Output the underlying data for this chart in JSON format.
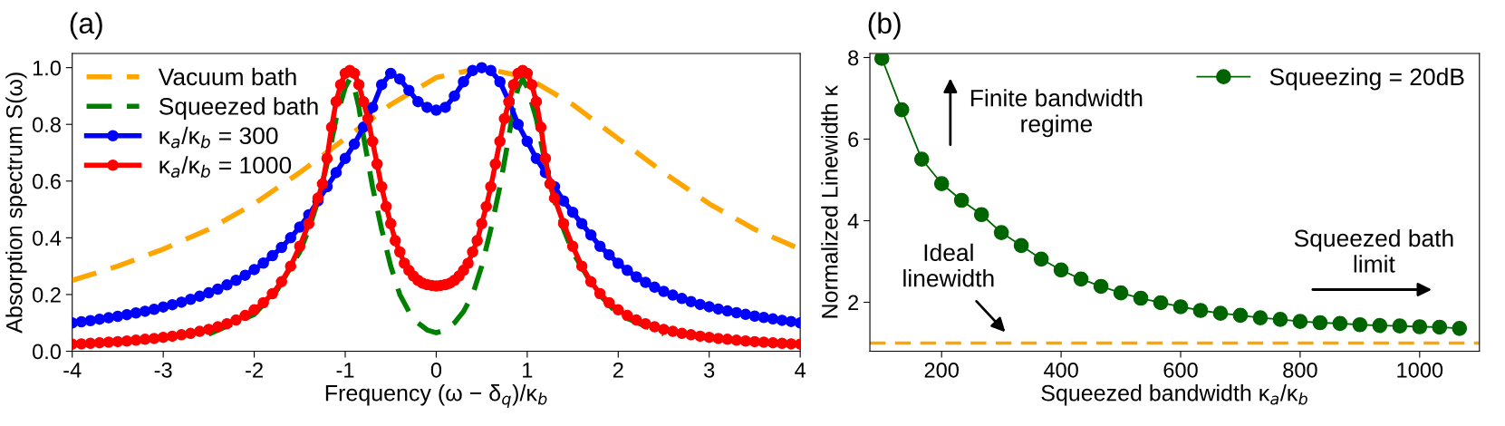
{
  "chart_data": [
    {
      "type": "line",
      "title": "(a)",
      "xlabel": "Frequency (ω − δ$_{q}$)/κ$_{b}$",
      "ylabel": "Absorption spectrum S(ω)",
      "xlim": [
        -4,
        4
      ],
      "xticks": [
        -4,
        -3,
        -2,
        -1,
        0,
        1,
        2,
        3,
        4
      ],
      "ylim": [
        0,
        1.05
      ],
      "yticks": [
        {
          "value": 0,
          "label": "0.0"
        },
        {
          "value": 0.2,
          "label": "0.2"
        },
        {
          "value": 0.4,
          "label": "0.4"
        },
        {
          "value": 0.6,
          "label": "0.6"
        },
        {
          "value": 0.8,
          "label": "0.8"
        },
        {
          "value": 1,
          "label": "1.0"
        }
      ],
      "legend": "top left",
      "grid": false,
      "series": [
        {
          "name": "Vacuum bath",
          "color": "#ffa500",
          "line_style": "dashed",
          "marker": "none",
          "x": [
            -4,
            -3.5,
            -3,
            -2.5,
            -2,
            -1.5,
            -1,
            -0.5,
            0,
            0.5,
            1,
            1.5,
            2,
            2.5,
            3,
            3.5,
            4
          ],
          "values": [
            0.25,
            0.3,
            0.36,
            0.43,
            0.52,
            0.63,
            0.75,
            0.87,
            0.965,
            1.0,
            0.965,
            0.87,
            0.75,
            0.63,
            0.52,
            0.43,
            0.36
          ]
        },
        {
          "name": "Squeezed bath",
          "color": "#008000",
          "line_style": "dashed",
          "marker": "none",
          "x": [
            -2.5,
            -2,
            -1.75,
            -1.5,
            -1.4,
            -1.3,
            -1.2,
            -1.1,
            -1.0,
            -0.95,
            -0.9,
            -0.85,
            -0.8,
            -0.7,
            -0.6,
            -0.5,
            -0.4,
            -0.3,
            -0.2,
            -0.1,
            0,
            0.1,
            0.2,
            0.3,
            0.4,
            0.5,
            0.6,
            0.7,
            0.8,
            0.85,
            0.9,
            0.95,
            1.0,
            1.1,
            1.2,
            1.3,
            1.4,
            1.5,
            1.75,
            2,
            2.5
          ],
          "values": [
            0.06,
            0.13,
            0.215,
            0.35,
            0.43,
            0.53,
            0.66,
            0.82,
            0.93,
            0.96,
            0.93,
            0.86,
            0.76,
            0.58,
            0.43,
            0.3,
            0.2,
            0.14,
            0.1,
            0.075,
            0.065,
            0.075,
            0.1,
            0.14,
            0.2,
            0.3,
            0.43,
            0.58,
            0.76,
            0.86,
            0.93,
            0.96,
            0.93,
            0.82,
            0.66,
            0.53,
            0.43,
            0.35,
            0.215,
            0.13,
            0.06
          ]
        },
        {
          "name": "κ$_{a}$/κ$_{b}$ = 300",
          "color": "#0000ff",
          "line_style": "solid",
          "marker": "circle",
          "x": [
            -4.0,
            -3.9,
            -3.8,
            -3.7,
            -3.6,
            -3.5,
            -3.4,
            -3.3,
            -3.2,
            -3.1,
            -3.0,
            -2.9,
            -2.8,
            -2.7,
            -2.6,
            -2.5,
            -2.4,
            -2.3,
            -2.2,
            -2.1,
            -2.0,
            -1.9,
            -1.8,
            -1.7,
            -1.6,
            -1.5,
            -1.4,
            -1.3,
            -1.2,
            -1.1,
            -1.0,
            -0.9,
            -0.8,
            -0.7,
            -0.6,
            -0.5,
            -0.4,
            -0.3,
            -0.2,
            -0.1,
            0,
            0.1,
            0.2,
            0.3,
            0.4,
            0.5,
            0.6,
            0.7,
            0.8,
            0.9,
            1.0,
            1.1,
            1.2,
            1.3,
            1.4,
            1.5,
            1.6,
            1.7,
            1.8,
            1.9,
            2.0,
            2.1,
            2.2,
            2.3,
            2.4,
            2.5,
            2.6,
            2.7,
            2.8,
            2.9,
            3.0,
            3.1,
            3.2,
            3.3,
            3.4,
            3.5,
            3.6,
            3.7,
            3.8,
            3.9,
            4.0
          ],
          "values": [
            0.1,
            0.104,
            0.108,
            0.113,
            0.118,
            0.123,
            0.129,
            0.135,
            0.141,
            0.148,
            0.156,
            0.164,
            0.173,
            0.183,
            0.194,
            0.206,
            0.219,
            0.234,
            0.25,
            0.268,
            0.288,
            0.311,
            0.337,
            0.366,
            0.4,
            0.438,
            0.481,
            0.53,
            0.58,
            0.63,
            0.68,
            0.73,
            0.79,
            0.86,
            0.94,
            0.98,
            0.96,
            0.92,
            0.88,
            0.86,
            0.85,
            0.86,
            0.9,
            0.95,
            0.99,
            1.0,
            0.99,
            0.95,
            0.88,
            0.8,
            0.74,
            0.68,
            0.63,
            0.58,
            0.53,
            0.49,
            0.45,
            0.41,
            0.37,
            0.34,
            0.31,
            0.285,
            0.262,
            0.243,
            0.226,
            0.211,
            0.198,
            0.186,
            0.175,
            0.165,
            0.157,
            0.149,
            0.142,
            0.136,
            0.13,
            0.124,
            0.119,
            0.114,
            0.109,
            0.105,
            0.1
          ]
        },
        {
          "name": "κ$_{a}$/κ$_{b}$ = 1000",
          "color": "#ff0000",
          "line_style": "solid",
          "marker": "circle",
          "x": [
            -4.0,
            -3.9,
            -3.8,
            -3.7,
            -3.6,
            -3.5,
            -3.4,
            -3.3,
            -3.2,
            -3.1,
            -3.0,
            -2.9,
            -2.8,
            -2.7,
            -2.6,
            -2.5,
            -2.4,
            -2.3,
            -2.2,
            -2.1,
            -2.0,
            -1.9,
            -1.8,
            -1.7,
            -1.6,
            -1.5,
            -1.4,
            -1.3,
            -1.25,
            -1.2,
            -1.15,
            -1.1,
            -1.05,
            -1.0,
            -0.95,
            -0.9,
            -0.85,
            -0.8,
            -0.75,
            -0.7,
            -0.65,
            -0.6,
            -0.55,
            -0.5,
            -0.45,
            -0.4,
            -0.35,
            -0.3,
            -0.25,
            -0.2,
            -0.15,
            -0.1,
            -0.05,
            0,
            0.05,
            0.1,
            0.15,
            0.2,
            0.25,
            0.3,
            0.35,
            0.4,
            0.45,
            0.5,
            0.55,
            0.6,
            0.65,
            0.7,
            0.75,
            0.8,
            0.85,
            0.9,
            0.95,
            1.0,
            1.05,
            1.1,
            1.15,
            1.2,
            1.25,
            1.3,
            1.4,
            1.5,
            1.6,
            1.7,
            1.8,
            1.9,
            2.0,
            2.1,
            2.2,
            2.3,
            2.4,
            2.5,
            2.6,
            2.7,
            2.8,
            2.9,
            3.0,
            3.1,
            3.2,
            3.3,
            3.4,
            3.5,
            3.6,
            3.7,
            3.8,
            3.9,
            4.0
          ],
          "values": [
            0.025,
            0.026,
            0.028,
            0.03,
            0.032,
            0.034,
            0.036,
            0.039,
            0.042,
            0.045,
            0.049,
            0.053,
            0.058,
            0.063,
            0.07,
            0.077,
            0.086,
            0.097,
            0.11,
            0.126,
            0.146,
            0.171,
            0.203,
            0.245,
            0.3,
            0.37,
            0.45,
            0.54,
            0.59,
            0.68,
            0.79,
            0.88,
            0.94,
            0.98,
            0.99,
            0.98,
            0.94,
            0.88,
            0.82,
            0.74,
            0.66,
            0.58,
            0.51,
            0.45,
            0.39,
            0.35,
            0.31,
            0.285,
            0.265,
            0.25,
            0.24,
            0.235,
            0.232,
            0.23,
            0.232,
            0.235,
            0.24,
            0.25,
            0.265,
            0.285,
            0.31,
            0.35,
            0.39,
            0.45,
            0.51,
            0.58,
            0.66,
            0.74,
            0.82,
            0.88,
            0.94,
            0.98,
            0.99,
            0.98,
            0.94,
            0.88,
            0.79,
            0.68,
            0.59,
            0.54,
            0.45,
            0.37,
            0.3,
            0.245,
            0.203,
            0.171,
            0.146,
            0.126,
            0.11,
            0.097,
            0.086,
            0.077,
            0.07,
            0.063,
            0.058,
            0.053,
            0.049,
            0.045,
            0.042,
            0.039,
            0.036,
            0.034,
            0.032,
            0.03,
            0.028,
            0.026,
            0.025
          ]
        }
      ]
    },
    {
      "type": "line",
      "title": "(b)",
      "xlabel": "Squeezed bandwidth κ$_{a}$/κ$_{b}$",
      "ylabel": "Normalized Linewidth κ",
      "xlim": [
        80,
        1100
      ],
      "xticks": [
        200,
        400,
        600,
        800,
        1000
      ],
      "ylim": [
        0.8,
        8.1
      ],
      "yticks": [
        2,
        4,
        6,
        8
      ],
      "legend": "top right",
      "grid": false,
      "series": [
        {
          "name": "Squeezing = 20dB",
          "color": "#006400",
          "line_style": "solid",
          "marker": "circle",
          "x": [
            100,
            133.3,
            166.7,
            200,
            233.3,
            266.7,
            300,
            333.3,
            366.7,
            400,
            433.3,
            466.7,
            500,
            533.3,
            566.7,
            600,
            633.3,
            666.7,
            700,
            733.3,
            766.7,
            800,
            833.3,
            866.7,
            900,
            933.3,
            966.7,
            1000,
            1033.3,
            1066.7
          ],
          "values": [
            7.98,
            6.72,
            5.51,
            4.91,
            4.5,
            4.15,
            3.71,
            3.39,
            3.06,
            2.79,
            2.57,
            2.39,
            2.23,
            2.1,
            1.99,
            1.89,
            1.8,
            1.73,
            1.68,
            1.62,
            1.58,
            1.53,
            1.5,
            1.48,
            1.45,
            1.43,
            1.42,
            1.4,
            1.39,
            1.36
          ]
        }
      ],
      "ref_lines": [
        {
          "axis": "y",
          "value": 1.0,
          "color": "#ffa500",
          "line_style": "dashed"
        }
      ],
      "annotations": [
        "Finite bandwidth\nregime",
        "Ideal\nlinewidth",
        "Squeezed bath\nlimit"
      ]
    }
  ]
}
